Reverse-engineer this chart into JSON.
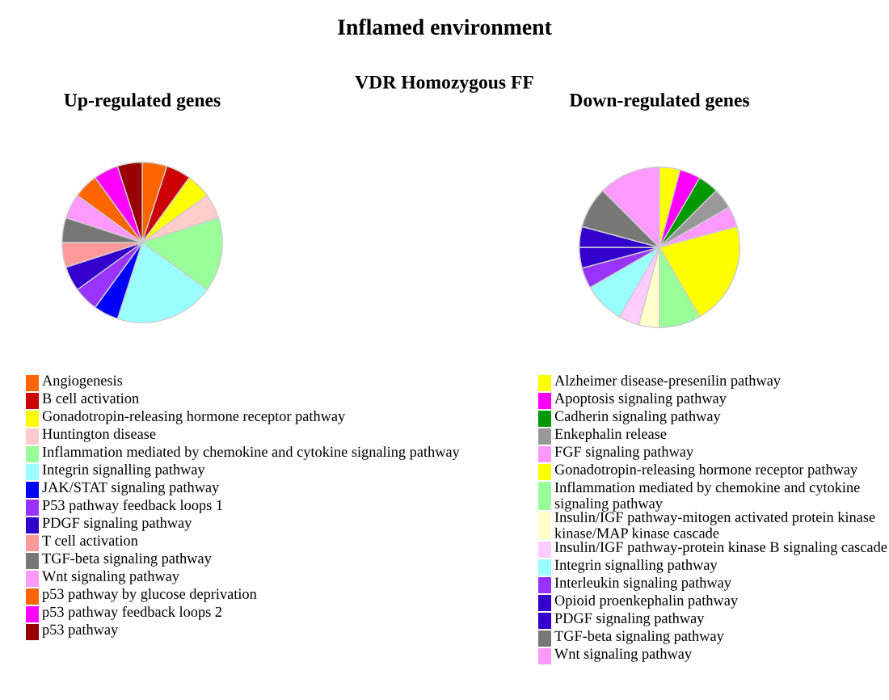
{
  "chart_data": [
    {
      "type": "pie",
      "title": "Up-regulated genes",
      "annotations": [
        "Inflamed environment",
        "VDR Homozygous FF"
      ],
      "legend": "bottom",
      "categories": [
        "Angiogenesis",
        "B cell activation",
        "Gonadotropin-releasing hormone receptor pathway",
        "Huntington disease",
        "Inflammation mediated by chemokine and cytokine signaling pathway",
        "Integrin signalling pathway",
        "JAK/STAT signaling pathway",
        "P53 pathway feedback loops 1",
        "PDGF signaling pathway",
        "T cell activation",
        "TGF-beta signaling pathway",
        "Wnt signaling pathway",
        "p53 pathway by glucose deprivation",
        "p53 pathway feedback loops 2",
        "p53 pathway"
      ],
      "values": [
        5,
        5,
        5,
        5,
        15,
        20,
        5,
        5,
        5,
        5,
        5,
        5,
        5,
        5,
        5
      ],
      "colors": [
        "#ff6600",
        "#cc0000",
        "#ffff00",
        "#ffcccc",
        "#99ff99",
        "#99ffff",
        "#0000ff",
        "#9933ff",
        "#3300cc",
        "#ff9999",
        "#777777",
        "#ff99ff",
        "#ff6600",
        "#ff00ff",
        "#990000"
      ]
    },
    {
      "type": "pie",
      "title": "Down-regulated genes",
      "legend": "bottom",
      "categories": [
        "Alzheimer disease-presenilin pathway",
        "Apoptosis signaling pathway",
        "Cadherin signaling pathway",
        "Enkephalin release",
        "FGF signaling pathway",
        "Gonadotropin-releasing hormone receptor pathway",
        "Inflammation mediated by chemokine and cytokine signaling pathway",
        "Insulin/IGF pathway-mitogen activated protein kinase kinase/MAP kinase cascade",
        "Insulin/IGF pathway-protein kinase B signaling cascade",
        "Integrin signalling pathway",
        "Interleukin signaling pathway",
        "Opioid proenkephalin pathway",
        "PDGF signaling pathway",
        "TGF-beta signaling pathway",
        "Wnt signaling pathway"
      ],
      "values": [
        4.17,
        4.17,
        4.17,
        4.17,
        4.17,
        20.83,
        8.33,
        4.17,
        4.17,
        8.33,
        4.17,
        4.17,
        4.17,
        8.33,
        12.5
      ],
      "colors": [
        "#ffff00",
        "#ff00ff",
        "#009900",
        "#999999",
        "#ff99ff",
        "#ffff00",
        "#99ff99",
        "#ffffcc",
        "#ffccff",
        "#99ffff",
        "#9933ff",
        "#3300cc",
        "#3300cc",
        "#777777",
        "#ff99ff"
      ]
    }
  ]
}
